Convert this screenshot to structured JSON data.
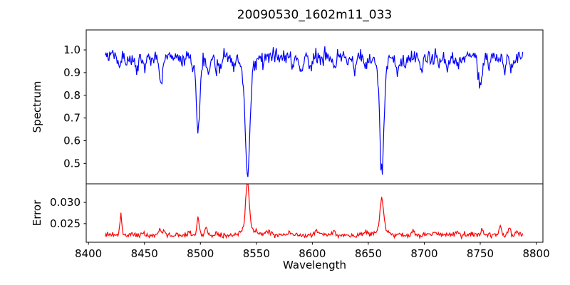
{
  "figure": {
    "title": "20090530_1602m11_033"
  },
  "chart_data": {
    "type": "line",
    "title": "20090530_1602m11_033",
    "xlabel": "Wavelength",
    "grid": false,
    "legend": "none",
    "x_axis": {
      "min": 8398,
      "max": 8806,
      "ticks": [
        {
          "v": 8400,
          "label": "8400"
        },
        {
          "v": 8450,
          "label": "8450"
        },
        {
          "v": 8500,
          "label": "8500"
        },
        {
          "v": 8550,
          "label": "8550"
        },
        {
          "v": 8600,
          "label": "8600"
        },
        {
          "v": 8650,
          "label": "8650"
        },
        {
          "v": 8700,
          "label": "8700"
        },
        {
          "v": 8750,
          "label": "8750"
        },
        {
          "v": 8800,
          "label": "8800"
        }
      ]
    },
    "noise_seed": 20090530,
    "x_start": 8415,
    "x_end": 8788,
    "n_points": 560,
    "panels": [
      {
        "name": "spectrum",
        "ylabel": "Spectrum",
        "color": "#0000ff",
        "ylim": [
          0.41,
          1.088
        ],
        "yticks": [
          {
            "v": 1.0,
            "label": "1.0"
          },
          {
            "v": 0.9,
            "label": "0.9"
          },
          {
            "v": 0.8,
            "label": "0.8"
          },
          {
            "v": 0.7,
            "label": "0.7"
          },
          {
            "v": 0.6,
            "label": "0.6"
          },
          {
            "v": 0.5,
            "label": "0.5"
          }
        ],
        "continuum": 0.97,
        "noise_sigma": 0.016,
        "absorption_lines": [
          {
            "center": 8428.0,
            "depth": 0.05,
            "width": 1.2
          },
          {
            "center": 8434.0,
            "depth": 0.04,
            "width": 1.0
          },
          {
            "center": 8443.0,
            "depth": 0.075,
            "width": 1.5
          },
          {
            "center": 8450.0,
            "depth": 0.04,
            "width": 1.2
          },
          {
            "center": 8458.0,
            "depth": 0.03,
            "width": 1.0
          },
          {
            "center": 8465.0,
            "depth": 0.11,
            "width": 1.6
          },
          {
            "center": 8483.0,
            "depth": 0.03,
            "width": 1.2
          },
          {
            "center": 8493.0,
            "depth": 0.04,
            "width": 1.0
          },
          {
            "center": 8498.0,
            "depth": 0.31,
            "width": 1.5
          },
          {
            "center": 8498.0,
            "depth": 0.02,
            "width": 5.0
          },
          {
            "center": 8507.0,
            "depth": 0.075,
            "width": 1.3
          },
          {
            "center": 8514.0,
            "depth": 0.05,
            "width": 1.2
          },
          {
            "center": 8518.0,
            "depth": 0.045,
            "width": 1.0
          },
          {
            "center": 8530.0,
            "depth": 0.03,
            "width": 1.0
          },
          {
            "center": 8542.1,
            "depth": 0.47,
            "width": 2.0
          },
          {
            "center": 8542.1,
            "depth": 0.06,
            "width": 6.0
          },
          {
            "center": 8582.0,
            "depth": 0.05,
            "width": 1.2
          },
          {
            "center": 8590.0,
            "depth": 0.08,
            "width": 1.6
          },
          {
            "center": 8598.0,
            "depth": 0.05,
            "width": 1.2
          },
          {
            "center": 8620.0,
            "depth": 0.055,
            "width": 1.4
          },
          {
            "center": 8632.0,
            "depth": 0.035,
            "width": 1.2
          },
          {
            "center": 8638.0,
            "depth": 0.045,
            "width": 1.2
          },
          {
            "center": 8648.0,
            "depth": 0.05,
            "width": 1.2
          },
          {
            "center": 8662.1,
            "depth": 0.46,
            "width": 1.8
          },
          {
            "center": 8662.1,
            "depth": 0.05,
            "width": 5.0
          },
          {
            "center": 8676.0,
            "depth": 0.085,
            "width": 1.4
          },
          {
            "center": 8683.0,
            "depth": 0.05,
            "width": 1.2
          },
          {
            "center": 8697.0,
            "depth": 0.065,
            "width": 1.4
          },
          {
            "center": 8713.0,
            "depth": 0.05,
            "width": 1.2
          },
          {
            "center": 8720.0,
            "depth": 0.06,
            "width": 1.3
          },
          {
            "center": 8730.0,
            "depth": 0.045,
            "width": 1.2
          },
          {
            "center": 8750.0,
            "depth": 0.115,
            "width": 1.8
          },
          {
            "center": 8758.0,
            "depth": 0.04,
            "width": 1.2
          },
          {
            "center": 8772.0,
            "depth": 0.04,
            "width": 1.2
          },
          {
            "center": 8778.0,
            "depth": 0.05,
            "width": 1.2
          }
        ]
      },
      {
        "name": "error",
        "ylabel": "Error",
        "color": "#ff0000",
        "ylim": [
          0.0206,
          0.0344
        ],
        "yticks": [
          {
            "v": 0.03,
            "label": "0.030"
          },
          {
            "v": 0.025,
            "label": "0.025"
          }
        ],
        "baseline": 0.0223,
        "noise_sigma": 0.0003,
        "peaks": [
          {
            "center": 8429.0,
            "height": 0.0048,
            "width": 0.9
          },
          {
            "center": 8448.0,
            "height": 0.0008,
            "width": 1.2
          },
          {
            "center": 8464.0,
            "height": 0.0013,
            "width": 1.3
          },
          {
            "center": 8468.0,
            "height": 0.001,
            "width": 1.0
          },
          {
            "center": 8490.0,
            "height": 0.0008,
            "width": 1.2
          },
          {
            "center": 8498.0,
            "height": 0.004,
            "width": 1.1
          },
          {
            "center": 8505.0,
            "height": 0.0022,
            "width": 1.0
          },
          {
            "center": 8514.0,
            "height": 0.0008,
            "width": 1.0
          },
          {
            "center": 8542.1,
            "height": 0.0106,
            "width": 1.6
          },
          {
            "center": 8542.1,
            "height": 0.0018,
            "width": 5.0
          },
          {
            "center": 8560.0,
            "height": 0.0006,
            "width": 2.0
          },
          {
            "center": 8580.0,
            "height": 0.0008,
            "width": 1.5
          },
          {
            "center": 8604.0,
            "height": 0.0012,
            "width": 1.5
          },
          {
            "center": 8620.0,
            "height": 0.0007,
            "width": 1.5
          },
          {
            "center": 8648.0,
            "height": 0.0008,
            "width": 1.2
          },
          {
            "center": 8662.1,
            "height": 0.0078,
            "width": 1.5
          },
          {
            "center": 8662.1,
            "height": 0.0012,
            "width": 5.0
          },
          {
            "center": 8690.0,
            "height": 0.0012,
            "width": 1.2
          },
          {
            "center": 8710.0,
            "height": 0.0007,
            "width": 1.2
          },
          {
            "center": 8730.0,
            "height": 0.0011,
            "width": 1.2
          },
          {
            "center": 8752.0,
            "height": 0.0012,
            "width": 1.2
          },
          {
            "center": 8768.0,
            "height": 0.002,
            "width": 1.0
          },
          {
            "center": 8776.0,
            "height": 0.0014,
            "width": 1.2
          },
          {
            "center": 8783.0,
            "height": 0.001,
            "width": 1.0
          }
        ]
      }
    ]
  }
}
